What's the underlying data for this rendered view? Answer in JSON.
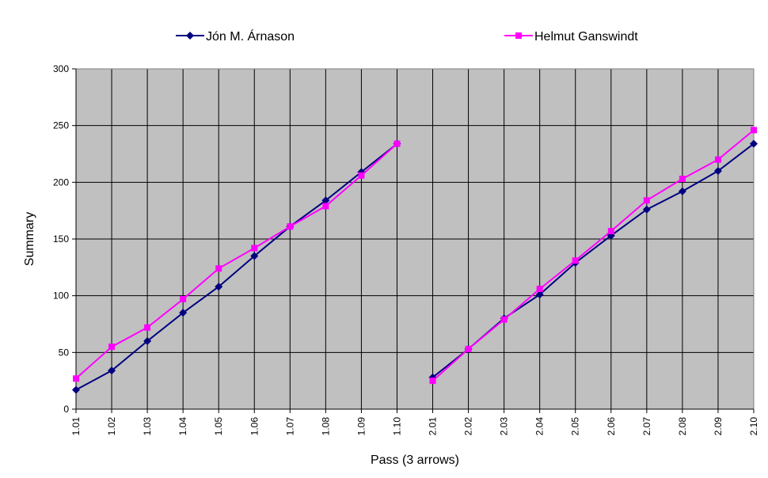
{
  "chart_data": {
    "type": "line",
    "title": "",
    "xlabel": "Pass (3 arrows)",
    "ylabel": "Summary",
    "ylim": [
      0,
      300
    ],
    "yticks": [
      0,
      50,
      100,
      150,
      200,
      250,
      300
    ],
    "grid": true,
    "legend": "top",
    "background_color": "#c0c0c0",
    "categories": [
      "1.01",
      "1.02",
      "1.03",
      "1.04",
      "1.05",
      "1.06",
      "1.07",
      "1.08",
      "1.09",
      "1.10",
      "2.01",
      "2.02",
      "2.03",
      "2.04",
      "2.05",
      "2.06",
      "2.07",
      "2.08",
      "2.09",
      "2.10"
    ],
    "segments": [
      [
        0,
        9
      ],
      [
        10,
        19
      ]
    ],
    "series": [
      {
        "name": "Jón M. Árnason",
        "color": "#000080",
        "marker": "diamond",
        "values": [
          17,
          34,
          60,
          85,
          108,
          135,
          161,
          184,
          209,
          234,
          28,
          53,
          80,
          101,
          129,
          153,
          176,
          192,
          210,
          234
        ]
      },
      {
        "name": "Helmut Ganswindt",
        "color": "#ff00ff",
        "marker": "square",
        "values": [
          27,
          55,
          72,
          97,
          124,
          142,
          161,
          179,
          206,
          234,
          25,
          53,
          79,
          106,
          131,
          157,
          184,
          203,
          220,
          246
        ]
      }
    ]
  }
}
